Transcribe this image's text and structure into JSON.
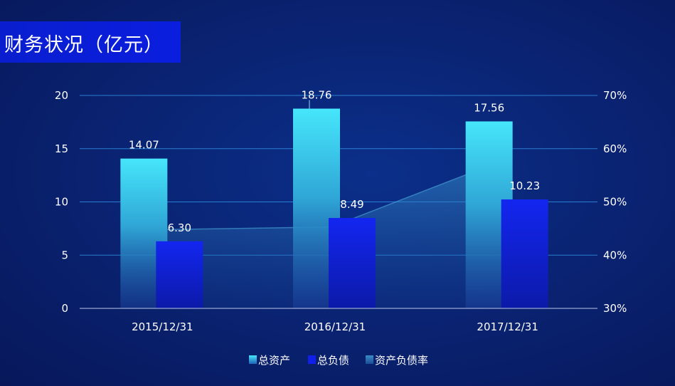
{
  "header": {
    "title": "财务状况（亿元）"
  },
  "chart_data": {
    "type": "bar",
    "title": "财务状况（亿元）",
    "categories": [
      "2015/12/31",
      "2016/12/31",
      "2017/12/31"
    ],
    "series": [
      {
        "name": "总资产",
        "type": "bar",
        "axis": "left",
        "values": [
          14.07,
          18.76,
          17.56
        ],
        "color": "#3fe0f8",
        "labels": [
          "14.07",
          "18.76",
          "17.56"
        ]
      },
      {
        "name": "总负债",
        "type": "bar",
        "axis": "left",
        "values": [
          6.3,
          8.49,
          10.23
        ],
        "color": "#1020e8",
        "labels": [
          "6.30",
          "8.49",
          "10.23"
        ]
      },
      {
        "name": "资产负债率",
        "type": "area",
        "axis": "right",
        "values": [
          44.8,
          45.3,
          58.3
        ],
        "color": "#3a8cc8"
      }
    ],
    "y_left": {
      "min": 0,
      "max": 20,
      "ticks": [
        "0",
        "5",
        "10",
        "15",
        "20"
      ],
      "tick_values": [
        0,
        5,
        10,
        15,
        20
      ]
    },
    "y_right": {
      "min": 30,
      "max": 70,
      "ticks": [
        "30%",
        "40%",
        "50%",
        "60%",
        "70%"
      ],
      "tick_values": [
        30,
        40,
        50,
        60,
        70
      ]
    },
    "grid": true,
    "legend": "bottom-center"
  }
}
